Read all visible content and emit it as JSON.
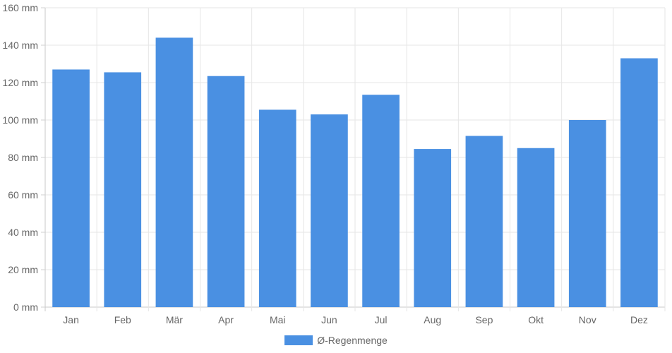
{
  "chart_data": {
    "type": "bar",
    "title": "",
    "xlabel": "",
    "ylabel": "",
    "categories": [
      "Jan",
      "Feb",
      "Mär",
      "Apr",
      "Mai",
      "Jun",
      "Jul",
      "Aug",
      "Sep",
      "Okt",
      "Nov",
      "Dez"
    ],
    "series": [
      {
        "name": "Ø-Regenmenge",
        "values": [
          127,
          125.5,
          144,
          123.5,
          105.5,
          103,
          113.5,
          84.5,
          91.5,
          85,
          100,
          133
        ],
        "color": "#4a90e2"
      }
    ],
    "ylim": [
      0,
      160
    ],
    "y_ticks": [
      {
        "value": 0,
        "label": "0 mm"
      },
      {
        "value": 20,
        "label": "20 mm"
      },
      {
        "value": 40,
        "label": "40 mm"
      },
      {
        "value": 60,
        "label": "60 mm"
      },
      {
        "value": 80,
        "label": "80 mm"
      },
      {
        "value": 100,
        "label": "100 mm"
      },
      {
        "value": 120,
        "label": "120 mm"
      },
      {
        "value": 140,
        "label": "140 mm"
      },
      {
        "value": 160,
        "label": "160 mm"
      }
    ],
    "grid": true,
    "legend_position": "bottom"
  }
}
